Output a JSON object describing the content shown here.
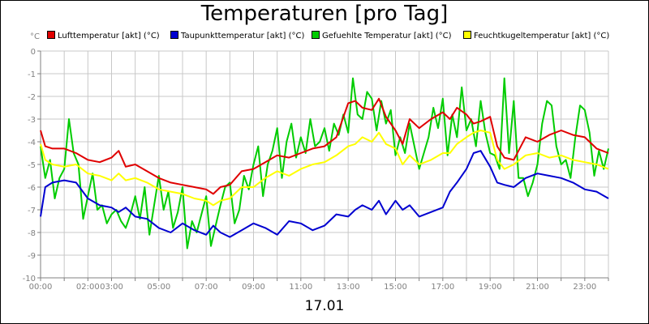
{
  "chart_data": {
    "type": "line",
    "title": "Temperaturen [pro Tag]",
    "xlabel": "17.01",
    "y_unit": "°C",
    "ylim": [
      -10,
      0
    ],
    "y_ticks": [
      0,
      -1,
      -2,
      -3,
      -4,
      -5,
      -6,
      -7,
      -8,
      -9,
      -10
    ],
    "x_range": [
      0,
      24
    ],
    "x_ticks": [
      {
        "h": 0,
        "label": "00:00"
      },
      {
        "h": 2,
        "label": "02:00"
      },
      {
        "h": 3,
        "label": "03:00"
      },
      {
        "h": 5,
        "label": "05:00"
      },
      {
        "h": 7,
        "label": "07:00"
      },
      {
        "h": 9,
        "label": "09:00"
      },
      {
        "h": 11,
        "label": "11:00"
      },
      {
        "h": 13,
        "label": "13:00"
      },
      {
        "h": 15,
        "label": "15:00"
      },
      {
        "h": 17,
        "label": "17:00"
      },
      {
        "h": 19,
        "label": "19:00"
      },
      {
        "h": 21,
        "label": "21:00"
      },
      {
        "h": 23,
        "label": "23:00"
      }
    ],
    "grid": true,
    "legend_position": "top",
    "series": [
      {
        "name": "Lufttemperatur [akt] (°C)",
        "color": "#e00000",
        "x": [
          0,
          0.2,
          0.5,
          1,
          1.5,
          2,
          2.5,
          3,
          3.3,
          3.6,
          4,
          4.5,
          5,
          5.5,
          6,
          6.5,
          7,
          7.3,
          7.6,
          8,
          8.5,
          9,
          9.5,
          10,
          10.5,
          11,
          11.5,
          12,
          12.5,
          13,
          13.3,
          13.6,
          14,
          14.3,
          14.6,
          15,
          15.3,
          15.6,
          16,
          16.5,
          17,
          17.3,
          17.6,
          18,
          18.3,
          18.6,
          19,
          19.3,
          19.6,
          20,
          20.5,
          21,
          21.5,
          22,
          22.5,
          23,
          23.5,
          24
        ],
        "y": [
          -3.5,
          -4.2,
          -4.3,
          -4.3,
          -4.5,
          -4.8,
          -4.9,
          -4.7,
          -4.4,
          -5.1,
          -5.0,
          -5.3,
          -5.6,
          -5.8,
          -5.9,
          -6.0,
          -6.1,
          -6.3,
          -6.0,
          -5.9,
          -5.3,
          -5.2,
          -4.9,
          -4.6,
          -4.7,
          -4.5,
          -4.3,
          -4.2,
          -3.8,
          -2.3,
          -2.2,
          -2.5,
          -2.6,
          -2.1,
          -2.9,
          -3.5,
          -4.1,
          -3.0,
          -3.4,
          -3.0,
          -2.7,
          -3.0,
          -2.5,
          -2.8,
          -3.2,
          -3.1,
          -2.9,
          -4.2,
          -4.7,
          -4.8,
          -3.8,
          -4.0,
          -3.7,
          -3.5,
          -3.7,
          -3.8,
          -4.3,
          -4.5
        ]
      },
      {
        "name": "Taupunkttemperatur [akt] (°C)",
        "color": "#0000d0",
        "x": [
          0,
          0.2,
          0.5,
          1,
          1.5,
          2,
          2.5,
          3,
          3.3,
          3.6,
          4,
          4.5,
          5,
          5.5,
          6,
          6.5,
          7,
          7.3,
          7.6,
          8,
          8.5,
          9,
          9.5,
          10,
          10.5,
          11,
          11.5,
          12,
          12.5,
          13,
          13.3,
          13.6,
          14,
          14.3,
          14.6,
          15,
          15.3,
          15.6,
          16,
          16.5,
          17,
          17.3,
          17.6,
          18,
          18.3,
          18.6,
          19,
          19.3,
          19.6,
          20,
          20.5,
          21,
          21.5,
          22,
          22.5,
          23,
          23.5,
          24
        ],
        "y": [
          -7.3,
          -6.0,
          -5.8,
          -5.7,
          -5.8,
          -6.5,
          -6.8,
          -6.9,
          -7.1,
          -6.9,
          -7.3,
          -7.4,
          -7.8,
          -8.0,
          -7.6,
          -7.9,
          -8.1,
          -7.7,
          -8.0,
          -8.2,
          -7.9,
          -7.6,
          -7.8,
          -8.1,
          -7.5,
          -7.6,
          -7.9,
          -7.7,
          -7.2,
          -7.3,
          -7.0,
          -6.8,
          -7.0,
          -6.6,
          -7.2,
          -6.6,
          -7.0,
          -6.8,
          -7.3,
          -7.1,
          -6.9,
          -6.2,
          -5.8,
          -5.2,
          -4.5,
          -4.4,
          -5.1,
          -5.8,
          -5.9,
          -6.0,
          -5.6,
          -5.4,
          -5.5,
          -5.6,
          -5.8,
          -6.1,
          -6.2,
          -6.5
        ]
      },
      {
        "name": "Gefuehlte Temperatur [akt] (°C)",
        "color": "#00cc00",
        "x": [
          0,
          0.2,
          0.4,
          0.6,
          0.8,
          1,
          1.2,
          1.4,
          1.6,
          1.8,
          2,
          2.2,
          2.4,
          2.6,
          2.8,
          3,
          3.2,
          3.4,
          3.6,
          3.8,
          4,
          4.2,
          4.4,
          4.6,
          4.8,
          5,
          5.2,
          5.4,
          5.6,
          5.8,
          6,
          6.2,
          6.4,
          6.6,
          6.8,
          7,
          7.2,
          7.4,
          7.6,
          7.8,
          8,
          8.2,
          8.4,
          8.6,
          8.8,
          9,
          9.2,
          9.4,
          9.6,
          9.8,
          10,
          10.2,
          10.4,
          10.6,
          10.8,
          11,
          11.2,
          11.4,
          11.6,
          11.8,
          12,
          12.2,
          12.4,
          12.6,
          12.8,
          13,
          13.2,
          13.4,
          13.6,
          13.8,
          14,
          14.2,
          14.4,
          14.6,
          14.8,
          15,
          15.2,
          15.4,
          15.6,
          15.8,
          16,
          16.2,
          16.4,
          16.6,
          16.8,
          17,
          17.2,
          17.4,
          17.6,
          17.8,
          18,
          18.2,
          18.4,
          18.6,
          18.8,
          19,
          19.2,
          19.4,
          19.6,
          19.8,
          20,
          20.2,
          20.4,
          20.6,
          20.8,
          21,
          21.2,
          21.4,
          21.6,
          21.8,
          22,
          22.2,
          22.4,
          22.6,
          22.8,
          23,
          23.2,
          23.4,
          23.6,
          23.8,
          24
        ],
        "y": [
          -4.2,
          -5.6,
          -4.8,
          -6.5,
          -5.6,
          -5.2,
          -3.0,
          -4.5,
          -5.0,
          -7.4,
          -6.4,
          -5.4,
          -7.0,
          -6.8,
          -7.6,
          -7.2,
          -7.0,
          -7.5,
          -7.8,
          -7.2,
          -6.4,
          -7.4,
          -6.0,
          -8.1,
          -6.8,
          -5.5,
          -7.0,
          -6.2,
          -7.8,
          -7.1,
          -6.0,
          -8.7,
          -7.5,
          -8.0,
          -7.2,
          -6.4,
          -8.6,
          -7.7,
          -6.8,
          -6.0,
          -5.8,
          -7.6,
          -7.0,
          -5.5,
          -6.1,
          -5.0,
          -4.2,
          -6.4,
          -5.0,
          -4.4,
          -3.4,
          -5.6,
          -4.0,
          -3.2,
          -4.7,
          -3.8,
          -4.5,
          -3.0,
          -4.2,
          -4.0,
          -3.4,
          -4.4,
          -3.2,
          -3.7,
          -2.8,
          -3.6,
          -1.2,
          -2.8,
          -3.0,
          -1.8,
          -2.1,
          -3.5,
          -2.2,
          -3.2,
          -2.6,
          -4.6,
          -3.8,
          -4.5,
          -3.2,
          -4.2,
          -5.2,
          -4.5,
          -3.8,
          -2.5,
          -3.4,
          -2.1,
          -4.6,
          -2.8,
          -3.8,
          -1.6,
          -3.5,
          -3.0,
          -4.2,
          -2.2,
          -3.6,
          -4.5,
          -4.6,
          -5.2,
          -1.2,
          -4.5,
          -2.2,
          -5.6,
          -5.6,
          -6.4,
          -5.8,
          -5.0,
          -3.2,
          -2.2,
          -2.4,
          -4.2,
          -5.0,
          -4.8,
          -5.6,
          -3.8,
          -2.4,
          -2.6,
          -3.6,
          -5.5,
          -4.4,
          -5.2,
          -4.3
        ]
      },
      {
        "name": "Feuchtkugeltemperatur [akt] (°C)",
        "color": "#ffff00",
        "x": [
          0,
          0.2,
          0.5,
          1,
          1.5,
          2,
          2.5,
          3,
          3.3,
          3.6,
          4,
          4.5,
          5,
          5.5,
          6,
          6.5,
          7,
          7.3,
          7.6,
          8,
          8.5,
          9,
          9.5,
          10,
          10.5,
          11,
          11.5,
          12,
          12.5,
          13,
          13.3,
          13.6,
          14,
          14.3,
          14.6,
          15,
          15.3,
          15.6,
          16,
          16.5,
          17,
          17.3,
          17.6,
          18,
          18.3,
          18.6,
          19,
          19.3,
          19.6,
          20,
          20.5,
          21,
          21.5,
          22,
          22.5,
          23,
          23.5,
          24
        ],
        "y": [
          -4.1,
          -4.8,
          -5.0,
          -5.1,
          -5.0,
          -5.4,
          -5.5,
          -5.7,
          -5.4,
          -5.7,
          -5.6,
          -5.8,
          -6.1,
          -6.2,
          -6.3,
          -6.5,
          -6.6,
          -6.8,
          -6.6,
          -6.5,
          -6.0,
          -6.0,
          -5.6,
          -5.3,
          -5.5,
          -5.2,
          -5.0,
          -4.9,
          -4.6,
          -4.2,
          -4.1,
          -3.8,
          -4.0,
          -3.6,
          -4.1,
          -4.3,
          -5.0,
          -4.6,
          -5.0,
          -4.8,
          -4.5,
          -4.5,
          -4.1,
          -3.8,
          -3.6,
          -3.5,
          -3.6,
          -4.8,
          -5.2,
          -5.0,
          -4.6,
          -4.5,
          -4.7,
          -4.6,
          -4.8,
          -4.9,
          -5.0,
          -5.2
        ]
      }
    ]
  }
}
